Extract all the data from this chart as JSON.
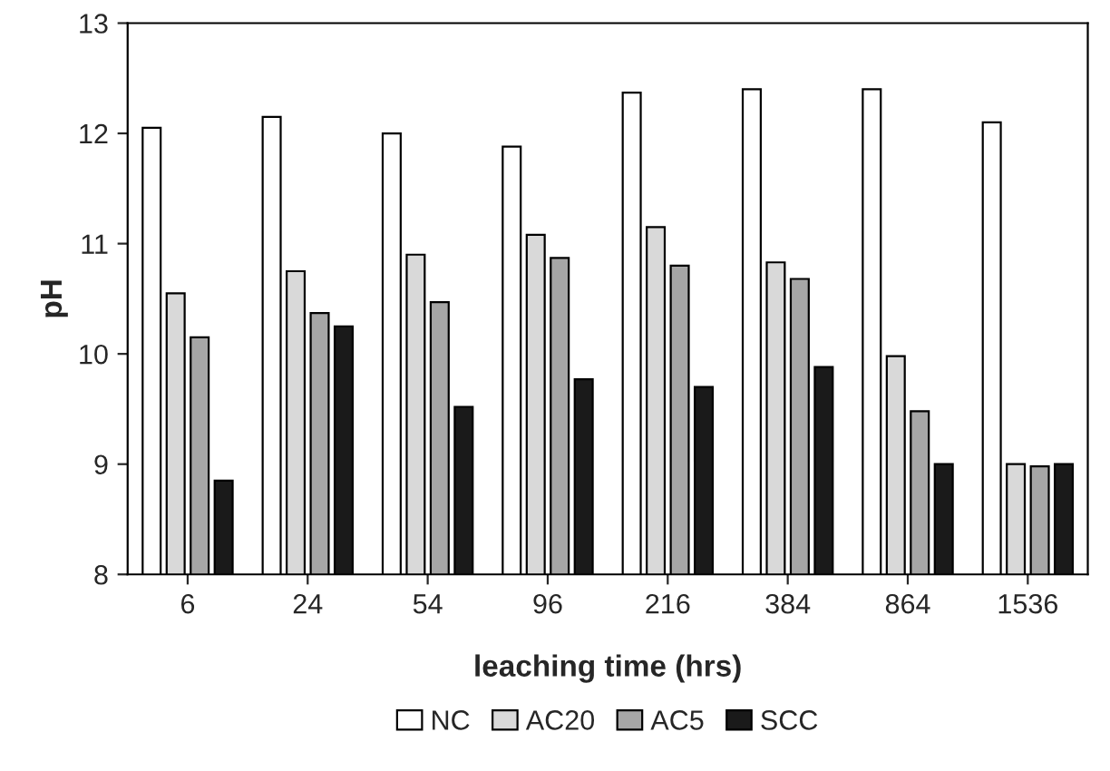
{
  "chart_data": {
    "type": "bar",
    "xlabel": "leaching time (hrs)",
    "ylabel": "pH",
    "categories": [
      "6",
      "24",
      "54",
      "96",
      "216",
      "384",
      "864",
      "1536"
    ],
    "series": [
      {
        "name": "NC",
        "color": "#ffffff",
        "values": [
          12.05,
          12.15,
          12.0,
          11.88,
          12.37,
          12.4,
          12.4,
          12.1
        ]
      },
      {
        "name": "AC20",
        "color": "#d9d9d9",
        "values": [
          10.55,
          10.75,
          10.9,
          11.08,
          11.15,
          10.83,
          9.98,
          9.0
        ]
      },
      {
        "name": "AC5",
        "color": "#a6a6a6",
        "values": [
          10.15,
          10.37,
          10.47,
          10.87,
          10.8,
          10.68,
          9.48,
          8.98
        ]
      },
      {
        "name": "SCC",
        "color": "#1a1a1a",
        "values": [
          8.85,
          10.25,
          9.52,
          9.77,
          9.7,
          9.88,
          9.0,
          9.0
        ]
      }
    ],
    "ylim": [
      8,
      13
    ],
    "yticks": [
      8,
      9,
      10,
      11,
      12,
      13
    ],
    "grid": false,
    "legend": "bottom"
  }
}
